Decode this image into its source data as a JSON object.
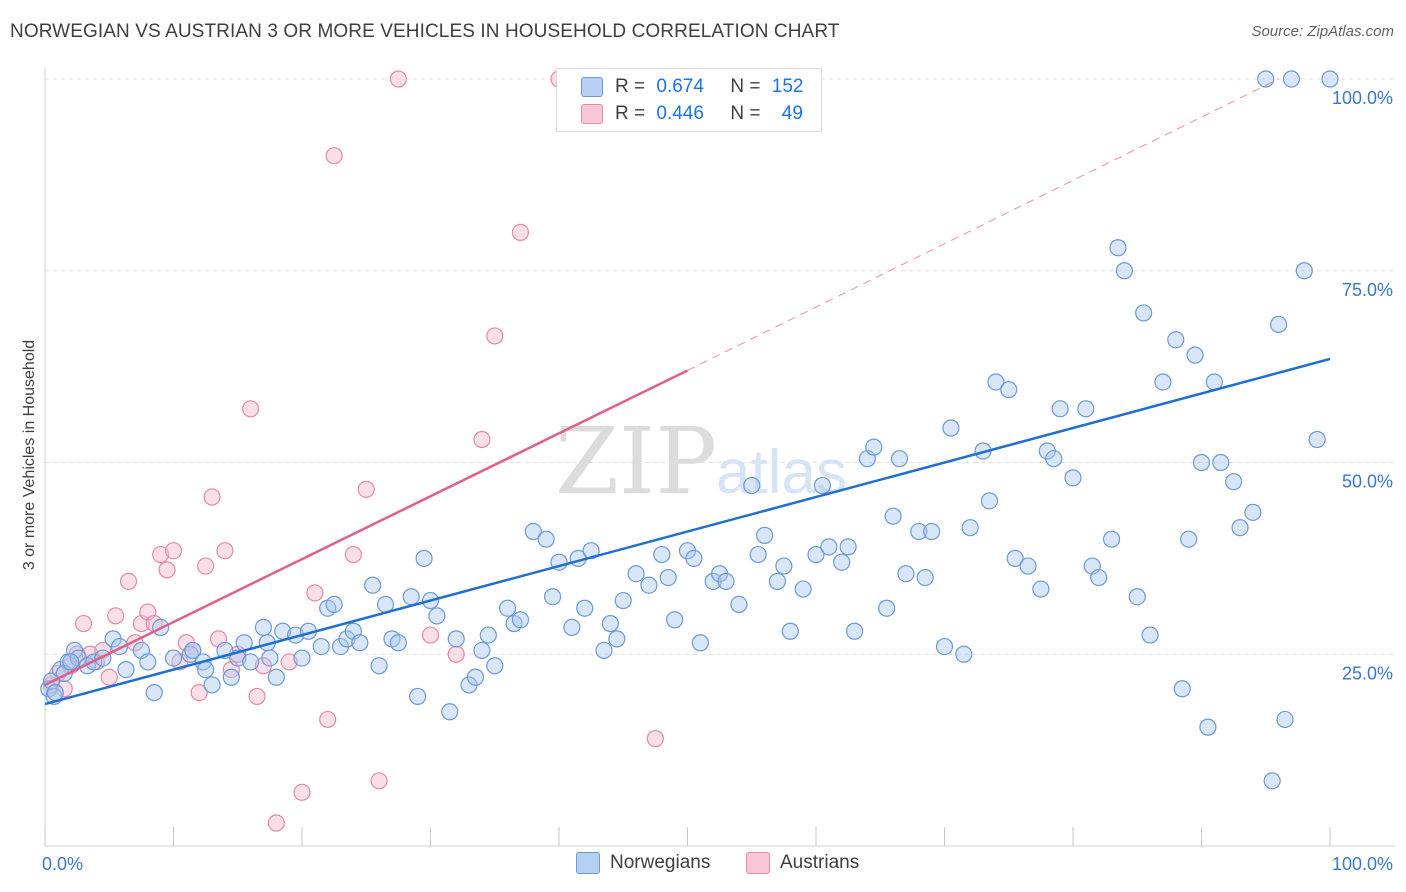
{
  "title": "NORWEGIAN VS AUSTRIAN 3 OR MORE VEHICLES IN HOUSEHOLD CORRELATION CHART",
  "source": "Source: ZipAtlas.com",
  "watermark": {
    "zip": "ZIP",
    "atlas": "atlas"
  },
  "colors": {
    "blue_fill": "#a8c7f0",
    "blue_stroke": "#6a9ad8",
    "blue_line": "#1f6fd1",
    "pink_fill": "#f6b8cb",
    "pink_stroke": "#e68aa6",
    "pink_line": "#e0608a",
    "tick_text": "#3a78c9",
    "grid": "#e0e0e0"
  },
  "legend": {
    "r_label": "R =",
    "n_label": "N =",
    "norwegians": {
      "r": "0.674",
      "n": "152"
    },
    "austrians": {
      "r": "0.446",
      "n": "49"
    }
  },
  "bottom_legend": {
    "norwegians": "Norwegians",
    "austrians": "Austrians"
  },
  "chart_data": {
    "type": "scatter",
    "title": "NORWEGIAN VS AUSTRIAN 3 OR MORE VEHICLES IN HOUSEHOLD CORRELATION CHART",
    "xlabel": "",
    "ylabel": "3 or more Vehicles in Household",
    "xlim": [
      0,
      100
    ],
    "ylim": [
      0,
      100
    ],
    "x_tick_labels": [
      "0.0%",
      "100.0%"
    ],
    "y_tick_labels": [
      "25.0%",
      "50.0%",
      "75.0%",
      "100.0%"
    ],
    "y_ticks": [
      25,
      50,
      75,
      100
    ],
    "grid": true,
    "legend_position": "top-center",
    "series": [
      {
        "name": "Norwegians",
        "trend": {
          "x": [
            0,
            100
          ],
          "y": [
            18.5,
            63.5
          ]
        },
        "points": [
          [
            0.3,
            20.5
          ],
          [
            0.5,
            21.5
          ],
          [
            0.7,
            19.5
          ],
          [
            1.2,
            23.0
          ],
          [
            1.8,
            24.0
          ],
          [
            2.3,
            25.5
          ],
          [
            2.6,
            24.5
          ],
          [
            3.3,
            23.5
          ],
          [
            3.8,
            24.0
          ],
          [
            4.5,
            24.5
          ],
          [
            5.3,
            27.0
          ],
          [
            5.8,
            26.0
          ],
          [
            6.3,
            23.0
          ],
          [
            7.5,
            25.5
          ],
          [
            8.5,
            20.0
          ],
          [
            8.0,
            24.0
          ],
          [
            9.0,
            28.5
          ],
          [
            10.0,
            24.5
          ],
          [
            11.3,
            25.0
          ],
          [
            12.3,
            24.0
          ],
          [
            11.5,
            25.5
          ],
          [
            12.5,
            23.0
          ],
          [
            13.0,
            21.0
          ],
          [
            14.0,
            25.5
          ],
          [
            14.5,
            22.0
          ],
          [
            15.0,
            24.5
          ],
          [
            15.5,
            26.5
          ],
          [
            16.0,
            24.0
          ],
          [
            17.0,
            28.5
          ],
          [
            17.3,
            26.5
          ],
          [
            17.5,
            24.5
          ],
          [
            18.0,
            22.0
          ],
          [
            18.5,
            28.0
          ],
          [
            19.5,
            27.5
          ],
          [
            20.0,
            24.5
          ],
          [
            20.5,
            28.0
          ],
          [
            21.5,
            26.0
          ],
          [
            22.0,
            31.0
          ],
          [
            22.5,
            31.5
          ],
          [
            23.0,
            26.0
          ],
          [
            23.5,
            27.0
          ],
          [
            24.0,
            28.0
          ],
          [
            24.5,
            26.5
          ],
          [
            25.5,
            34.0
          ],
          [
            26.0,
            23.5
          ],
          [
            26.5,
            31.5
          ],
          [
            27.0,
            27.0
          ],
          [
            27.5,
            26.5
          ],
          [
            28.5,
            32.5
          ],
          [
            29.0,
            19.5
          ],
          [
            29.5,
            37.5
          ],
          [
            30.0,
            32.0
          ],
          [
            30.5,
            30.0
          ],
          [
            31.5,
            17.5
          ],
          [
            32.0,
            27.0
          ],
          [
            33.0,
            21.0
          ],
          [
            33.5,
            22.0
          ],
          [
            34.0,
            25.5
          ],
          [
            34.5,
            27.5
          ],
          [
            35.0,
            23.5
          ],
          [
            36.0,
            31.0
          ],
          [
            36.5,
            29.0
          ],
          [
            37.0,
            29.5
          ],
          [
            38.0,
            41.0
          ],
          [
            39.0,
            40.0
          ],
          [
            39.5,
            32.5
          ],
          [
            40.0,
            37.0
          ],
          [
            41.0,
            28.5
          ],
          [
            41.5,
            37.5
          ],
          [
            42.0,
            31.0
          ],
          [
            42.5,
            38.5
          ],
          [
            43.5,
            25.5
          ],
          [
            44.0,
            29.0
          ],
          [
            44.5,
            27.0
          ],
          [
            45.0,
            32.0
          ],
          [
            46.0,
            35.5
          ],
          [
            47.0,
            34.0
          ],
          [
            48.0,
            38.0
          ],
          [
            48.5,
            35.0
          ],
          [
            49.0,
            29.5
          ],
          [
            50.0,
            38.5
          ],
          [
            50.5,
            37.5
          ],
          [
            51.0,
            26.5
          ],
          [
            52.0,
            34.5
          ],
          [
            52.5,
            35.5
          ],
          [
            53.0,
            34.5
          ],
          [
            54.0,
            31.5
          ],
          [
            55.0,
            47.0
          ],
          [
            55.5,
            38.0
          ],
          [
            56.0,
            40.5
          ],
          [
            57.0,
            34.5
          ],
          [
            57.5,
            36.5
          ],
          [
            58.0,
            28.0
          ],
          [
            59.0,
            33.5
          ],
          [
            60.0,
            38.0
          ],
          [
            60.5,
            47.0
          ],
          [
            61.0,
            39.0
          ],
          [
            62.0,
            37.0
          ],
          [
            62.5,
            39.0
          ],
          [
            63.0,
            28.0
          ],
          [
            64.0,
            50.5
          ],
          [
            64.5,
            52.0
          ],
          [
            65.5,
            31.0
          ],
          [
            66.0,
            43.0
          ],
          [
            66.5,
            50.5
          ],
          [
            67.0,
            35.5
          ],
          [
            68.0,
            41.0
          ],
          [
            68.5,
            35.0
          ],
          [
            69.0,
            41.0
          ],
          [
            70.0,
            26.0
          ],
          [
            70.5,
            54.5
          ],
          [
            71.5,
            25.0
          ],
          [
            72.0,
            41.5
          ],
          [
            73.0,
            51.5
          ],
          [
            73.5,
            45.0
          ],
          [
            74.0,
            60.5
          ],
          [
            75.0,
            59.5
          ],
          [
            75.5,
            37.5
          ],
          [
            76.5,
            36.5
          ],
          [
            77.5,
            33.5
          ],
          [
            78.0,
            51.5
          ],
          [
            78.5,
            50.5
          ],
          [
            79.0,
            57.0
          ],
          [
            80.0,
            48.0
          ],
          [
            81.0,
            57.0
          ],
          [
            81.5,
            36.5
          ],
          [
            82.0,
            35.0
          ],
          [
            83.0,
            40.0
          ],
          [
            83.5,
            78.0
          ],
          [
            84.0,
            75.0
          ],
          [
            85.0,
            32.5
          ],
          [
            85.5,
            69.5
          ],
          [
            86.0,
            27.5
          ],
          [
            87.0,
            60.5
          ],
          [
            88.0,
            66.0
          ],
          [
            88.5,
            20.5
          ],
          [
            89.0,
            40.0
          ],
          [
            89.5,
            64.0
          ],
          [
            90.0,
            50.0
          ],
          [
            90.5,
            15.5
          ],
          [
            91.0,
            60.5
          ],
          [
            91.5,
            50.0
          ],
          [
            92.5,
            47.5
          ],
          [
            93.0,
            41.5
          ],
          [
            94.0,
            43.5
          ],
          [
            95.5,
            8.5
          ],
          [
            96.0,
            68.0
          ],
          [
            97.0,
            100.0
          ],
          [
            98.0,
            75.0
          ],
          [
            99.0,
            53.0
          ],
          [
            100.0,
            100.0
          ],
          [
            95.0,
            100.0
          ],
          [
            96.5,
            16.5
          ],
          [
            0.8,
            20.0
          ],
          [
            1.5,
            22.5
          ],
          [
            2.0,
            24.0
          ]
        ]
      },
      {
        "name": "Austrians",
        "trend": {
          "x": [
            0,
            50
          ],
          "y": [
            21.0,
            62.0
          ]
        },
        "trend_extension": {
          "x": [
            50,
            96
          ],
          "y": [
            62.0,
            100.0
          ]
        },
        "points": [
          [
            0.5,
            21.0
          ],
          [
            1.0,
            22.5
          ],
          [
            1.5,
            20.5
          ],
          [
            2.0,
            23.5
          ],
          [
            2.5,
            25.0
          ],
          [
            3.0,
            29.0
          ],
          [
            3.5,
            25.0
          ],
          [
            4.0,
            24.0
          ],
          [
            4.5,
            25.5
          ],
          [
            5.0,
            22.0
          ],
          [
            5.5,
            30.0
          ],
          [
            6.5,
            34.5
          ],
          [
            7.0,
            26.5
          ],
          [
            7.5,
            29.0
          ],
          [
            8.0,
            30.5
          ],
          [
            8.5,
            29.0
          ],
          [
            9.0,
            38.0
          ],
          [
            9.5,
            36.0
          ],
          [
            10.0,
            38.5
          ],
          [
            10.5,
            24.0
          ],
          [
            11.0,
            26.5
          ],
          [
            11.5,
            25.5
          ],
          [
            12.0,
            20.0
          ],
          [
            12.5,
            36.5
          ],
          [
            13.0,
            45.5
          ],
          [
            13.5,
            27.0
          ],
          [
            14.0,
            38.5
          ],
          [
            14.5,
            23.0
          ],
          [
            15.0,
            25.0
          ],
          [
            16.0,
            57.0
          ],
          [
            16.5,
            19.5
          ],
          [
            17.0,
            23.5
          ],
          [
            18.0,
            3.0
          ],
          [
            19.0,
            24.0
          ],
          [
            20.0,
            7.0
          ],
          [
            21.0,
            33.0
          ],
          [
            22.0,
            16.5
          ],
          [
            22.5,
            90.0
          ],
          [
            24.0,
            38.0
          ],
          [
            25.0,
            46.5
          ],
          [
            26.0,
            8.5
          ],
          [
            27.5,
            100.0
          ],
          [
            30.0,
            27.5
          ],
          [
            32.0,
            25.0
          ],
          [
            34.0,
            53.0
          ],
          [
            35.0,
            66.5
          ],
          [
            37.0,
            80.0
          ],
          [
            40.0,
            100.0
          ],
          [
            47.5,
            14.0
          ]
        ]
      }
    ]
  }
}
